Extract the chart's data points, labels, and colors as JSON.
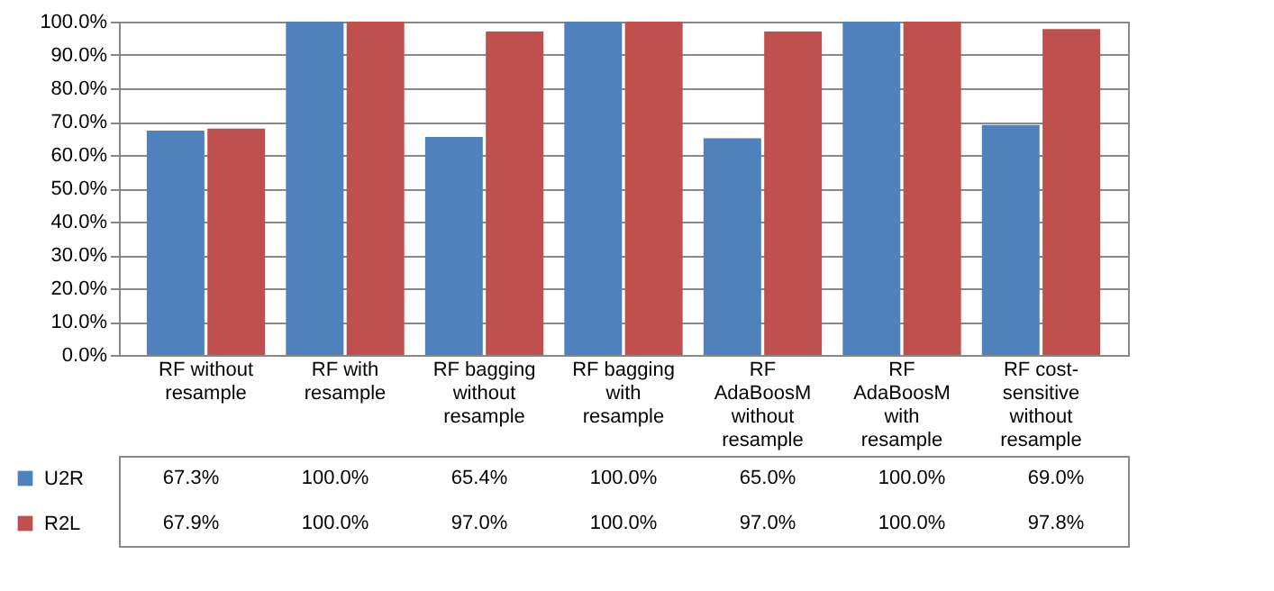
{
  "chart_data": {
    "type": "bar",
    "categories": [
      "RF without resample",
      "RF with resample",
      "RF bagging without resample",
      "RF bagging with resample",
      "RF AdaBoosM without resample",
      "RF AdaBoosM with resample",
      "RF cost-sensitive without resample"
    ],
    "series": [
      {
        "name": "U2R",
        "color": "#4f81bd",
        "values": [
          67.3,
          100.0,
          65.4,
          100.0,
          65.0,
          100.0,
          69.0
        ],
        "value_labels": [
          "67.3%",
          "100.0%",
          "65.4%",
          "100.0%",
          "65.0%",
          "100.0%",
          "69.0%"
        ]
      },
      {
        "name": "R2L",
        "color": "#c0504d",
        "values": [
          67.9,
          100.0,
          97.0,
          100.0,
          97.0,
          100.0,
          97.8
        ],
        "value_labels": [
          "67.9%",
          "100.0%",
          "97.0%",
          "100.0%",
          "97.0%",
          "100.0%",
          "97.8%"
        ]
      }
    ],
    "ylim": [
      0,
      100
    ],
    "yticks": [
      {
        "value": 0,
        "label": "0.0%"
      },
      {
        "value": 10,
        "label": "10.0%"
      },
      {
        "value": 20,
        "label": "20.0%"
      },
      {
        "value": 30,
        "label": "30.0%"
      },
      {
        "value": 40,
        "label": "40.0%"
      },
      {
        "value": 50,
        "label": "50.0%"
      },
      {
        "value": 60,
        "label": "60.0%"
      },
      {
        "value": 70,
        "label": "70.0%"
      },
      {
        "value": 80,
        "label": "80.0%"
      },
      {
        "value": 90,
        "label": "90.0%"
      },
      {
        "value": 100,
        "label": "100.0%"
      }
    ],
    "grid": "y",
    "legend": "bottom"
  }
}
